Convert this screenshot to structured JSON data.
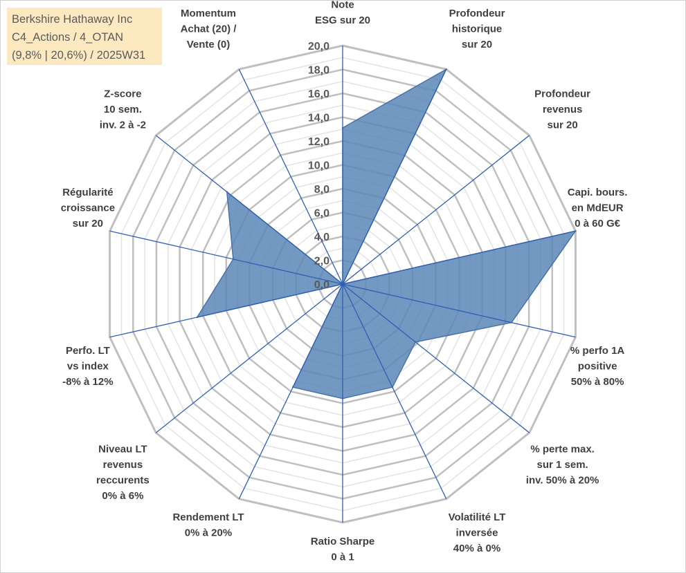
{
  "title_box": {
    "line1": "Berkshire Hathaway Inc",
    "line2": "C4_Actions / 4_OTAN",
    "line3": "(9,8% | 20,6%) / 2025W31"
  },
  "colors": {
    "fill": "#5b87b8",
    "stroke": "#4a72a4",
    "grid_major": "#bfbfbf",
    "grid_minor": "#e3e3e3",
    "spoke": "#2f5fb3",
    "title_bg": "#fde9c0"
  },
  "chart_data": {
    "type": "radar",
    "title": "",
    "rmax": 20,
    "tick_step": 2,
    "tick_labels": [
      "0,0",
      "2,0",
      "4,0",
      "6,0",
      "8,0",
      "10,0",
      "12,0",
      "14,0",
      "16,0",
      "18,0",
      "20,0"
    ],
    "categories": [
      [
        "Note",
        "ESG sur 20"
      ],
      [
        "Profondeur",
        "historique",
        "sur 20"
      ],
      [
        "Profondeur",
        "revenus",
        "sur 20"
      ],
      [
        "Capi. bours.",
        "en MdEUR",
        "0 à 60 G€"
      ],
      [
        "% perfo 1A",
        "positive",
        "50% à 80%"
      ],
      [
        "% perte max.",
        "sur 1 sem.",
        "inv. 50% à 20%"
      ],
      [
        "Volatilité LT",
        "inversée",
        "40% à 0%"
      ],
      [
        "Ratio Sharpe",
        "0 à 1"
      ],
      [
        "Rendement LT",
        "0% à 20%"
      ],
      [
        "Niveau LT",
        "revenus",
        "reccurents",
        "0% à 6%"
      ],
      [
        "Perfo. LT",
        "vs index",
        "-8% à 12%"
      ],
      [
        "Régularité",
        "croissance",
        "sur 20"
      ],
      [
        "Z-score",
        "10 sem.",
        "inv. 2 à -2"
      ],
      [
        "Momentum",
        "Achat (20) /",
        "Vente (0)"
      ]
    ],
    "series": [
      {
        "values": [
          13.1,
          20.0,
          0.0,
          20.0,
          14.5,
          7.8,
          9.6,
          9.6,
          9.6,
          0.0,
          12.5,
          9.4,
          12.4,
          0.0
        ]
      }
    ],
    "grid": true,
    "legend": "none"
  }
}
